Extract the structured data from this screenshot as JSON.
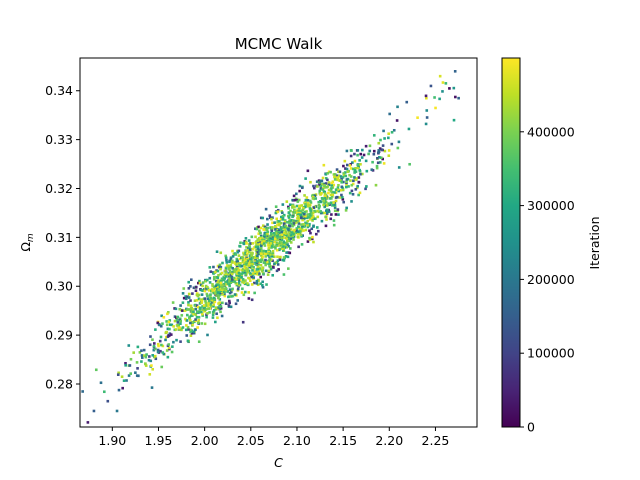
{
  "chart_data": {
    "type": "scatter",
    "title": "MCMC Walk",
    "xlabel": "C",
    "ylabel": "Ω_m",
    "ylabel_main": "Ω",
    "ylabel_sub": "m",
    "xlim": [
      1.865,
      2.295
    ],
    "ylim": [
      0.2712,
      0.3467
    ],
    "xticks": [
      1.9,
      1.95,
      2.0,
      2.05,
      2.1,
      2.15,
      2.2,
      2.25
    ],
    "xtick_labels": [
      "1.90",
      "1.95",
      "2.00",
      "2.05",
      "2.10",
      "2.15",
      "2.20",
      "2.25"
    ],
    "yticks": [
      0.28,
      0.29,
      0.3,
      0.31,
      0.32,
      0.33,
      0.34
    ],
    "ytick_labels": [
      "0.28",
      "0.29",
      "0.30",
      "0.31",
      "0.32",
      "0.33",
      "0.34"
    ],
    "grid": false,
    "colormap": "viridis",
    "colorbar": {
      "label": "Iteration",
      "range": [
        0,
        500000
      ],
      "ticks": [
        0,
        100000,
        200000,
        300000,
        400000
      ],
      "tick_labels": [
        "0",
        "100000",
        "200000",
        "300000",
        "400000"
      ]
    },
    "series": [
      {
        "x_mean": 2.065,
        "y_mean": 0.3075,
        "x_sd": 0.062,
        "y_sd": 0.0105,
        "correlation": 0.965,
        "iterations": [
          0,
          500000
        ],
        "samples_shown": 1800
      }
    ],
    "outliers": [
      {
        "x": 1.88,
        "y": 0.2745,
        "iteration": 150000
      },
      {
        "x": 1.895,
        "y": 0.2765,
        "iteration": 120000
      },
      {
        "x": 1.905,
        "y": 0.2745,
        "iteration": 200000
      },
      {
        "x": 2.245,
        "y": 0.341,
        "iteration": 130000
      },
      {
        "x": 2.265,
        "y": 0.3405,
        "iteration": 10000
      },
      {
        "x": 2.275,
        "y": 0.3385,
        "iteration": 160000
      },
      {
        "x": 2.255,
        "y": 0.343,
        "iteration": 470000
      },
      {
        "x": 2.27,
        "y": 0.334,
        "iteration": 300000
      },
      {
        "x": 2.24,
        "y": 0.3385,
        "iteration": 480000
      },
      {
        "x": 2.25,
        "y": 0.3365,
        "iteration": 495000
      }
    ]
  }
}
